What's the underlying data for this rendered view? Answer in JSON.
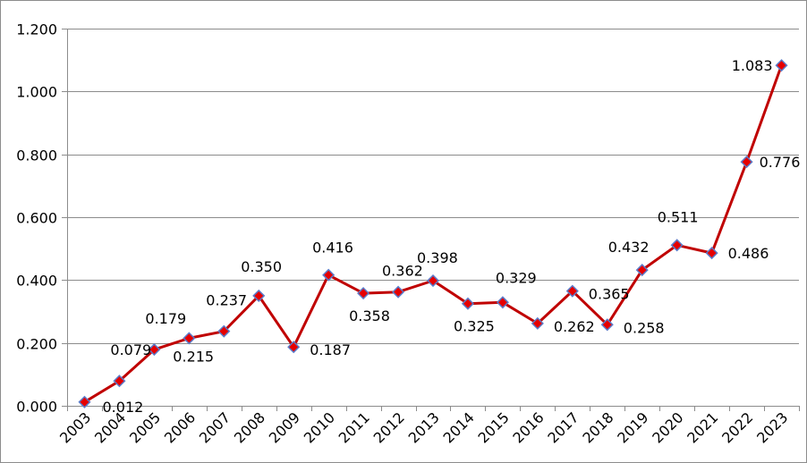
{
  "chart_data": {
    "type": "line",
    "title": "",
    "xlabel": "",
    "ylabel": "",
    "categories": [
      "2003",
      "2004",
      "2005",
      "2006",
      "2007",
      "2008",
      "2009",
      "2010",
      "2011",
      "2012",
      "2013",
      "2014",
      "2015",
      "2016",
      "2017",
      "2018",
      "2019",
      "2020",
      "2021",
      "2022",
      "2023"
    ],
    "series": [
      {
        "name": "",
        "values": [
          0.012,
          0.079,
          0.179,
          0.215,
          0.237,
          0.35,
          0.187,
          0.416,
          0.358,
          0.362,
          0.398,
          0.325,
          0.329,
          0.262,
          0.365,
          0.258,
          0.432,
          0.511,
          0.486,
          0.776,
          1.083
        ],
        "data_labels": [
          "0.012",
          "0.079",
          "0.179",
          "0.215",
          "0.237",
          "0.350",
          "0.187",
          "0.416",
          "0.358",
          "0.362",
          "0.398",
          "0.325",
          "0.329",
          "0.262",
          "0.365",
          "0.258",
          "0.432",
          "0.511",
          "0.486",
          "0.776",
          "1.083"
        ]
      }
    ],
    "ylim": [
      0,
      1.2
    ],
    "yticks": [
      0,
      0.2,
      0.4,
      0.6,
      0.8,
      1.0,
      1.2
    ],
    "ytick_labels": [
      "0.000",
      "0.200",
      "0.400",
      "0.600",
      "0.800",
      "1.000",
      "1.200"
    ],
    "grid": true,
    "legend": "none",
    "colors": {
      "line": "#c00000",
      "marker_fill": "#e60000",
      "marker_edge": "#5b7bc9",
      "grid": "#8c8c8c",
      "axis": "#8c8c8c"
    }
  }
}
